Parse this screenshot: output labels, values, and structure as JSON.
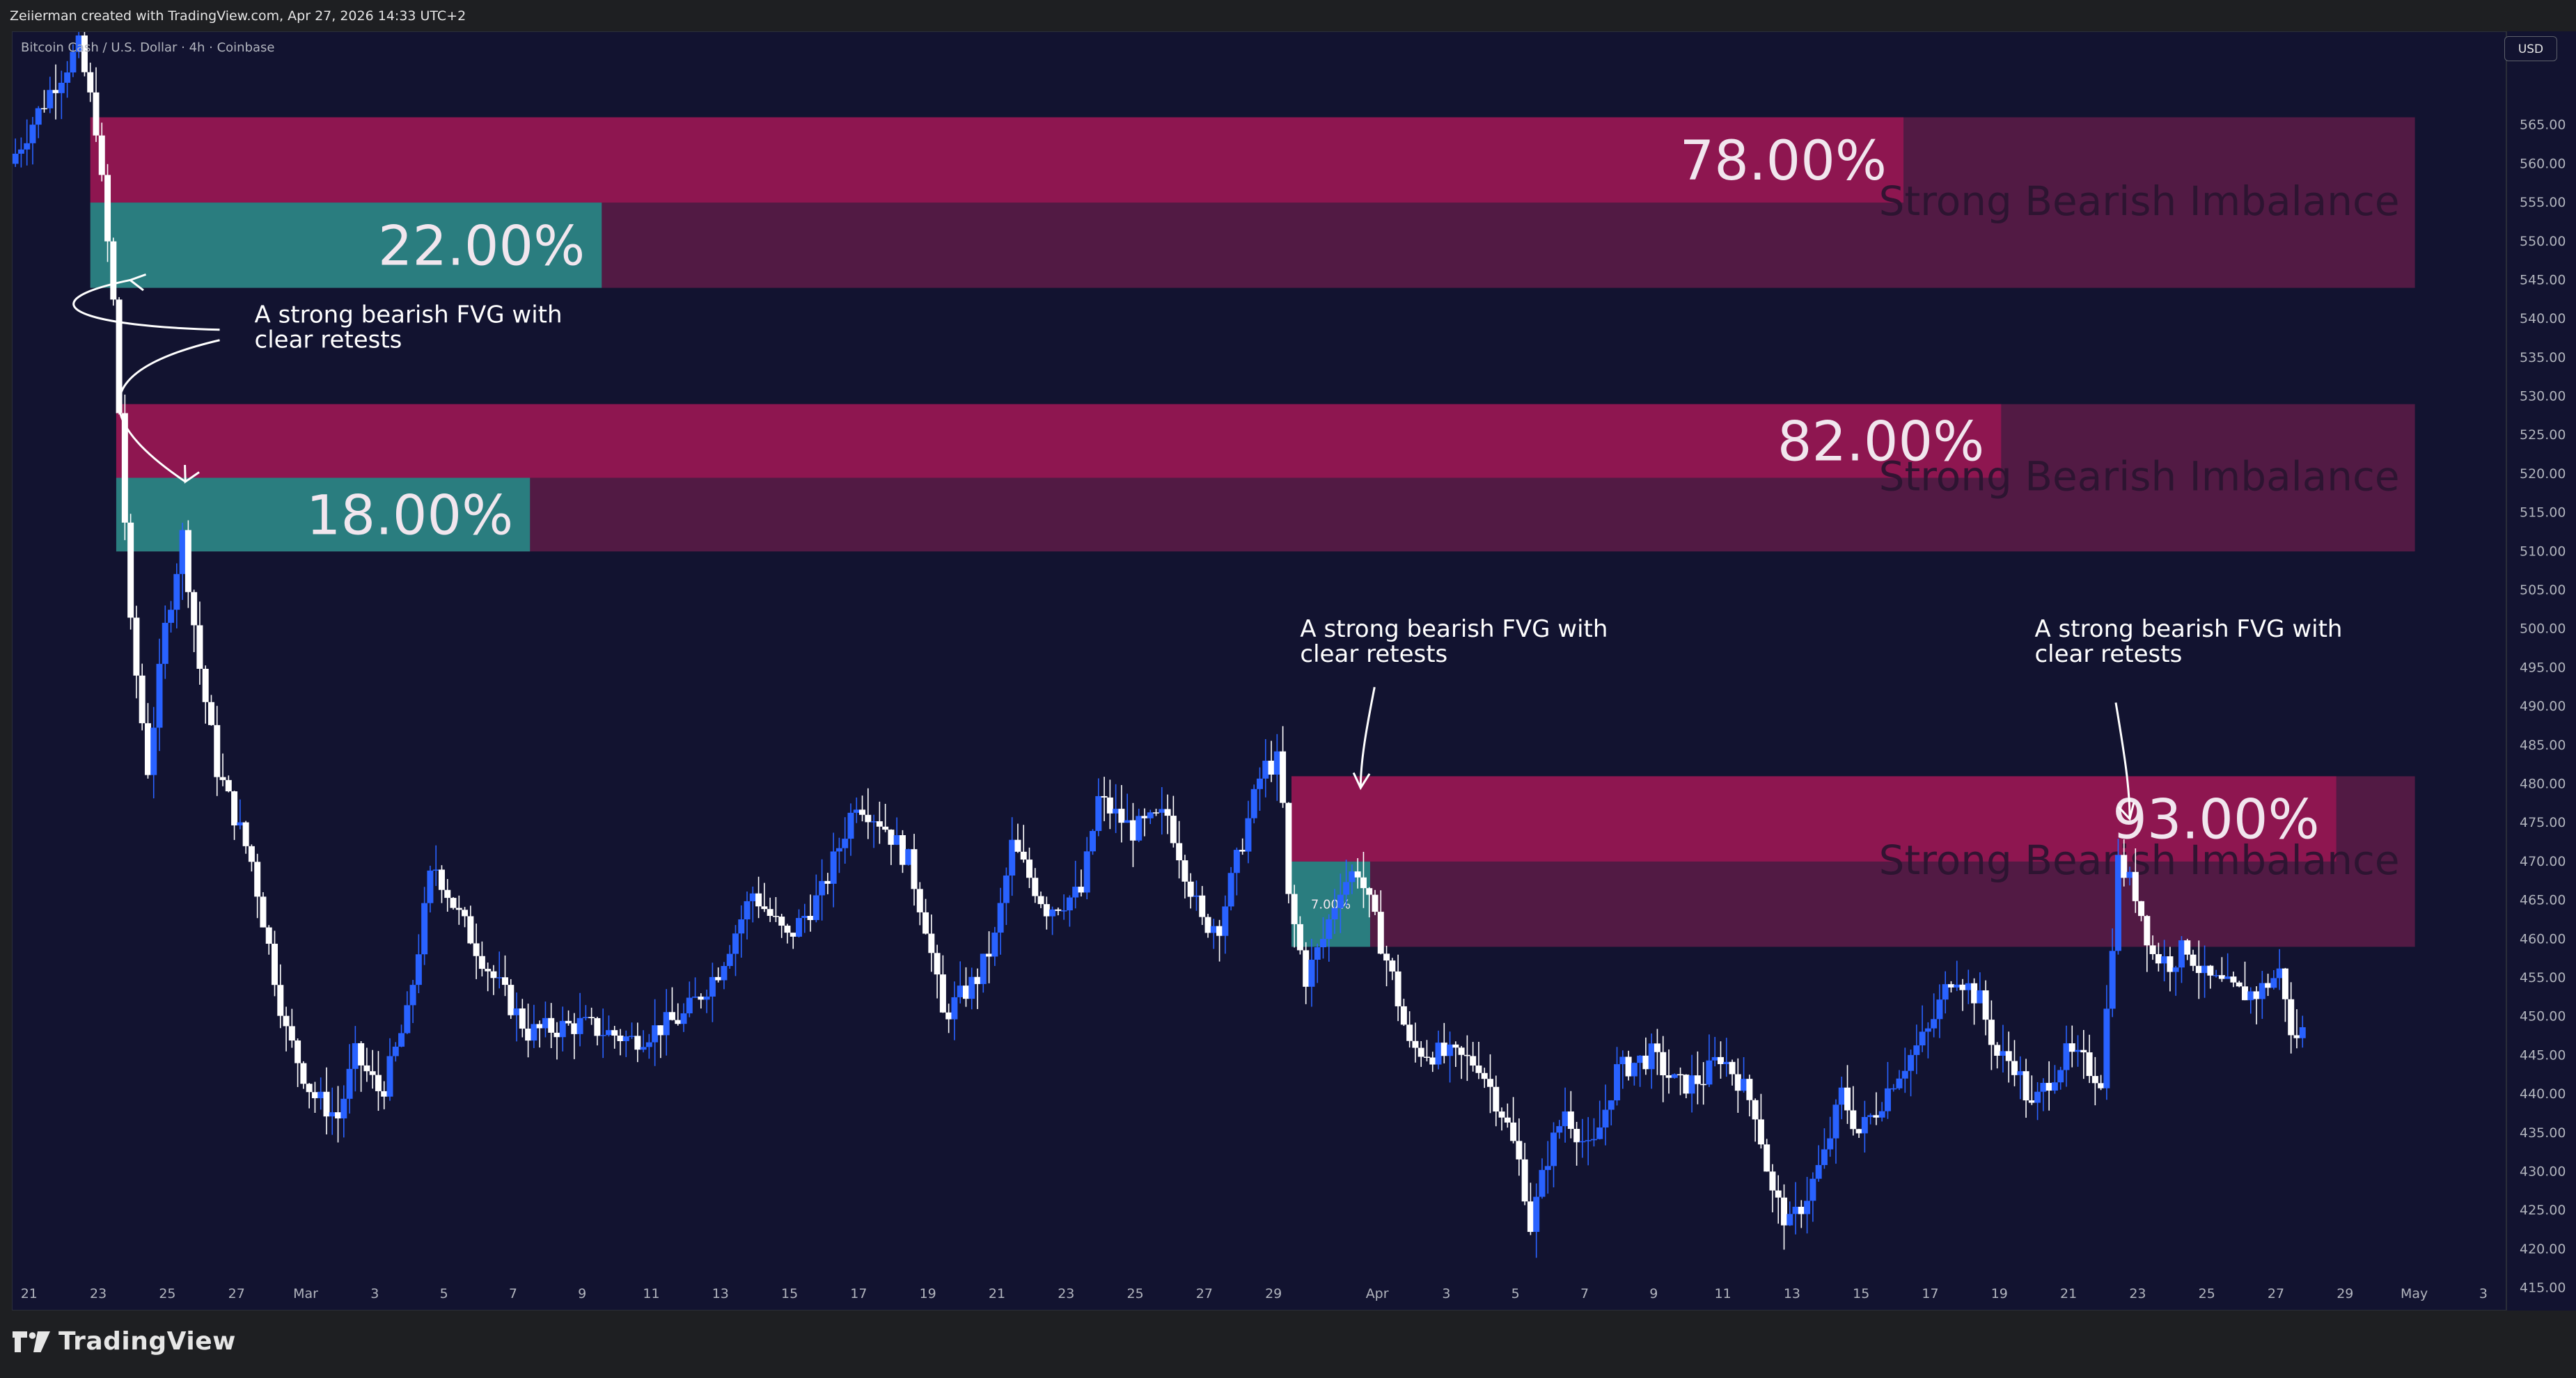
{
  "credit": "Zeiierman created with TradingView.com, Apr 27, 2026 14:33 UTC+2",
  "symbol_label": "Bitcoin Cash / U.S. Dollar · 4h · Coinbase",
  "currency": "USD",
  "logo_text": "TradingView",
  "colors": {
    "background": "#121330",
    "bull_candle": "#2962ff",
    "bear_candle": "#ffffff",
    "zone_dark": "#521a44",
    "zone_bear_fill": "#8e1650",
    "zone_bull_fill": "#2a7d7f"
  },
  "chart_data": {
    "type": "candlestick",
    "title": "",
    "xlabel": "",
    "ylabel": "",
    "ylim": [
      412,
      577
    ],
    "y_ticks": [
      "415.00",
      "420.00",
      "425.00",
      "430.00",
      "435.00",
      "440.00",
      "445.00",
      "450.00",
      "455.00",
      "460.00",
      "465.00",
      "470.00",
      "475.00",
      "480.00",
      "485.00",
      "490.00",
      "495.00",
      "500.00",
      "505.00",
      "510.00",
      "515.00",
      "520.00",
      "525.00",
      "530.00",
      "535.00",
      "540.00",
      "545.00",
      "550.00",
      "555.00",
      "560.00",
      "565.00"
    ],
    "x_ticks": [
      {
        "label": "21",
        "date": "2026-02-21"
      },
      {
        "label": "23",
        "date": "2026-02-23"
      },
      {
        "label": "25",
        "date": "2026-02-25"
      },
      {
        "label": "27",
        "date": "2026-02-27"
      },
      {
        "label": "Mar",
        "date": "2026-03-01"
      },
      {
        "label": "3",
        "date": "2026-03-03"
      },
      {
        "label": "5",
        "date": "2026-03-05"
      },
      {
        "label": "7",
        "date": "2026-03-07"
      },
      {
        "label": "9",
        "date": "2026-03-09"
      },
      {
        "label": "11",
        "date": "2026-03-11"
      },
      {
        "label": "13",
        "date": "2026-03-13"
      },
      {
        "label": "15",
        "date": "2026-03-15"
      },
      {
        "label": "17",
        "date": "2026-03-17"
      },
      {
        "label": "19",
        "date": "2026-03-19"
      },
      {
        "label": "21",
        "date": "2026-03-21"
      },
      {
        "label": "23",
        "date": "2026-03-23"
      },
      {
        "label": "25",
        "date": "2026-03-25"
      },
      {
        "label": "27",
        "date": "2026-03-27"
      },
      {
        "label": "29",
        "date": "2026-03-29"
      },
      {
        "label": "Apr",
        "date": "2026-04-01"
      },
      {
        "label": "3",
        "date": "2026-04-03"
      },
      {
        "label": "5",
        "date": "2026-04-05"
      },
      {
        "label": "7",
        "date": "2026-04-07"
      },
      {
        "label": "9",
        "date": "2026-04-09"
      },
      {
        "label": "11",
        "date": "2026-04-11"
      },
      {
        "label": "13",
        "date": "2026-04-13"
      },
      {
        "label": "15",
        "date": "2026-04-15"
      },
      {
        "label": "17",
        "date": "2026-04-17"
      },
      {
        "label": "19",
        "date": "2026-04-19"
      },
      {
        "label": "21",
        "date": "2026-04-21"
      },
      {
        "label": "23",
        "date": "2026-04-23"
      },
      {
        "label": "25",
        "date": "2026-04-25"
      },
      {
        "label": "27",
        "date": "2026-04-27"
      },
      {
        "label": "29",
        "date": "2026-04-29"
      },
      {
        "label": "May",
        "date": "2026-05-01"
      },
      {
        "label": "3",
        "date": "2026-05-03"
      }
    ],
    "x_range": [
      "2026-02-20T12:00",
      "2026-05-03T16:00"
    ],
    "price_path": [
      {
        "date": "2026-02-20T12:00",
        "price": 560
      },
      {
        "date": "2026-02-21T18:00",
        "price": 570
      },
      {
        "date": "2026-02-22T12:00",
        "price": 575
      },
      {
        "date": "2026-02-23T00:00",
        "price": 565
      },
      {
        "date": "2026-02-23T12:00",
        "price": 542
      },
      {
        "date": "2026-02-24T00:00",
        "price": 500
      },
      {
        "date": "2026-02-24T12:00",
        "price": 482
      },
      {
        "date": "2026-02-25T00:00",
        "price": 500
      },
      {
        "date": "2026-02-25T12:00",
        "price": 512
      },
      {
        "date": "2026-02-26T00:00",
        "price": 495
      },
      {
        "date": "2026-02-26T12:00",
        "price": 482
      },
      {
        "date": "2026-02-27T12:00",
        "price": 470
      },
      {
        "date": "2026-02-28T12:00",
        "price": 448
      },
      {
        "date": "2026-03-01T06:00",
        "price": 440
      },
      {
        "date": "2026-03-02T00:00",
        "price": 437
      },
      {
        "date": "2026-03-02T12:00",
        "price": 445
      },
      {
        "date": "2026-03-03T06:00",
        "price": 440
      },
      {
        "date": "2026-03-04T00:00",
        "price": 450
      },
      {
        "date": "2026-03-04T18:00",
        "price": 470
      },
      {
        "date": "2026-03-05T12:00",
        "price": 463
      },
      {
        "date": "2026-03-06T12:00",
        "price": 455
      },
      {
        "date": "2026-03-07T12:00",
        "price": 448
      },
      {
        "date": "2026-03-09T00:00",
        "price": 449
      },
      {
        "date": "2026-03-10T12:00",
        "price": 447
      },
      {
        "date": "2026-03-12T00:00",
        "price": 450
      },
      {
        "date": "2026-03-13T00:00",
        "price": 456
      },
      {
        "date": "2026-03-14T00:00",
        "price": 466
      },
      {
        "date": "2026-03-15T00:00",
        "price": 460
      },
      {
        "date": "2026-03-16T00:00",
        "price": 466
      },
      {
        "date": "2026-03-17T00:00",
        "price": 478
      },
      {
        "date": "2026-03-17T18:00",
        "price": 475
      },
      {
        "date": "2026-03-18T12:00",
        "price": 470
      },
      {
        "date": "2026-03-19T00:00",
        "price": 462
      },
      {
        "date": "2026-03-19T12:00",
        "price": 450
      },
      {
        "date": "2026-03-20T12:00",
        "price": 455
      },
      {
        "date": "2026-03-21T00:00",
        "price": 460
      },
      {
        "date": "2026-03-21T12:00",
        "price": 472
      },
      {
        "date": "2026-03-22T12:00",
        "price": 464
      },
      {
        "date": "2026-03-23T12:00",
        "price": 466
      },
      {
        "date": "2026-03-24T00:00",
        "price": 478
      },
      {
        "date": "2026-03-25T00:00",
        "price": 474
      },
      {
        "date": "2026-03-26T00:00",
        "price": 476
      },
      {
        "date": "2026-03-27T00:00",
        "price": 462
      },
      {
        "date": "2026-03-27T12:00",
        "price": 462
      },
      {
        "date": "2026-03-28T00:00",
        "price": 470
      },
      {
        "date": "2026-03-28T18:00",
        "price": 482
      },
      {
        "date": "2026-03-29T06:00",
        "price": 483
      },
      {
        "date": "2026-03-29T12:00",
        "price": 465
      },
      {
        "date": "2026-03-30T00:00",
        "price": 455
      },
      {
        "date": "2026-03-30T12:00",
        "price": 460
      },
      {
        "date": "2026-03-31T00:00",
        "price": 467
      },
      {
        "date": "2026-03-31T12:00",
        "price": 469
      },
      {
        "date": "2026-04-01T00:00",
        "price": 462
      },
      {
        "date": "2026-04-01T12:00",
        "price": 455
      },
      {
        "date": "2026-04-02T00:00",
        "price": 446
      },
      {
        "date": "2026-04-03T00:00",
        "price": 445
      },
      {
        "date": "2026-04-04T00:00",
        "price": 444
      },
      {
        "date": "2026-04-04T18:00",
        "price": 437
      },
      {
        "date": "2026-04-05T06:00",
        "price": 430
      },
      {
        "date": "2026-04-05T12:00",
        "price": 423
      },
      {
        "date": "2026-04-06T00:00",
        "price": 432
      },
      {
        "date": "2026-04-06T12:00",
        "price": 438
      },
      {
        "date": "2026-04-07T06:00",
        "price": 432
      },
      {
        "date": "2026-04-08T00:00",
        "price": 443
      },
      {
        "date": "2026-04-09T00:00",
        "price": 445
      },
      {
        "date": "2026-04-09T18:00",
        "price": 441
      },
      {
        "date": "2026-04-10T12:00",
        "price": 442
      },
      {
        "date": "2026-04-11T00:00",
        "price": 445
      },
      {
        "date": "2026-04-11T12:00",
        "price": 442
      },
      {
        "date": "2026-04-12T00:00",
        "price": 438
      },
      {
        "date": "2026-04-12T12:00",
        "price": 427
      },
      {
        "date": "2026-04-13T00:00",
        "price": 423
      },
      {
        "date": "2026-04-13T12:00",
        "price": 427
      },
      {
        "date": "2026-04-14T00:00",
        "price": 432
      },
      {
        "date": "2026-04-14T12:00",
        "price": 440
      },
      {
        "date": "2026-04-15T00:00",
        "price": 435
      },
      {
        "date": "2026-04-15T12:00",
        "price": 438
      },
      {
        "date": "2026-04-16T00:00",
        "price": 442
      },
      {
        "date": "2026-04-17T00:00",
        "price": 448
      },
      {
        "date": "2026-04-17T18:00",
        "price": 456
      },
      {
        "date": "2026-04-18T12:00",
        "price": 452
      },
      {
        "date": "2026-04-19T00:00",
        "price": 445
      },
      {
        "date": "2026-04-19T12:00",
        "price": 444
      },
      {
        "date": "2026-04-20T00:00",
        "price": 438
      },
      {
        "date": "2026-04-20T12:00",
        "price": 442
      },
      {
        "date": "2026-04-21T00:00",
        "price": 445
      },
      {
        "date": "2026-04-21T12:00",
        "price": 444
      },
      {
        "date": "2026-04-22T00:00",
        "price": 442
      },
      {
        "date": "2026-04-22T06:00",
        "price": 455
      },
      {
        "date": "2026-04-22T12:00",
        "price": 470
      },
      {
        "date": "2026-04-23T00:00",
        "price": 466
      },
      {
        "date": "2026-04-23T12:00",
        "price": 458
      },
      {
        "date": "2026-04-24T00:00",
        "price": 457
      },
      {
        "date": "2026-04-24T12:00",
        "price": 459
      },
      {
        "date": "2026-04-25T00:00",
        "price": 455
      },
      {
        "date": "2026-04-25T12:00",
        "price": 454
      },
      {
        "date": "2026-04-26T00:00",
        "price": 453
      },
      {
        "date": "2026-04-26T12:00",
        "price": 453
      },
      {
        "date": "2026-04-27T00:00",
        "price": 455
      },
      {
        "date": "2026-04-27T06:00",
        "price": 456
      },
      {
        "date": "2026-04-27T12:00",
        "price": 447
      },
      {
        "date": "2026-04-27T18:00",
        "price": 448
      }
    ],
    "zones": [
      {
        "id": "zone1",
        "top": 566,
        "bottom": 544,
        "start": "2026-02-22T18:00",
        "end": "2026-05-01T00:00",
        "bear_pct": "78.00%",
        "bull_pct": "22.00%",
        "bear_frac": 0.78,
        "bull_frac": 0.22,
        "label": "Strong Bearish Imbalance"
      },
      {
        "id": "zone2",
        "top": 529,
        "bottom": 510,
        "start": "2026-02-23T12:00",
        "end": "2026-05-01T00:00",
        "bear_pct": "82.00%",
        "bull_pct": "18.00%",
        "bear_frac": 0.82,
        "bull_frac": 0.18,
        "label": "Strong Bearish Imbalance"
      },
      {
        "id": "zone3",
        "top": 481,
        "bottom": 459,
        "start": "2026-03-29T12:00",
        "end": "2026-05-01T00:00",
        "bear_pct": "93.00%",
        "bull_pct": "7.00%",
        "bear_frac": 0.93,
        "bull_frac": 0.07,
        "label": "Strong Bearish Imbalance"
      }
    ],
    "annotations": [
      {
        "id": "ann1",
        "line1": "A strong bearish FVG with",
        "line2": "clear retests",
        "date": "2026-02-27T12:00",
        "price": 539.5
      },
      {
        "id": "ann2",
        "line1": "A strong bearish FVG with",
        "line2": "clear retests",
        "date": "2026-03-29T18:00",
        "price": 499
      },
      {
        "id": "ann3",
        "line1": "A strong bearish FVG with",
        "line2": "clear retests",
        "date": "2026-04-20T00:00",
        "price": 499
      }
    ]
  }
}
